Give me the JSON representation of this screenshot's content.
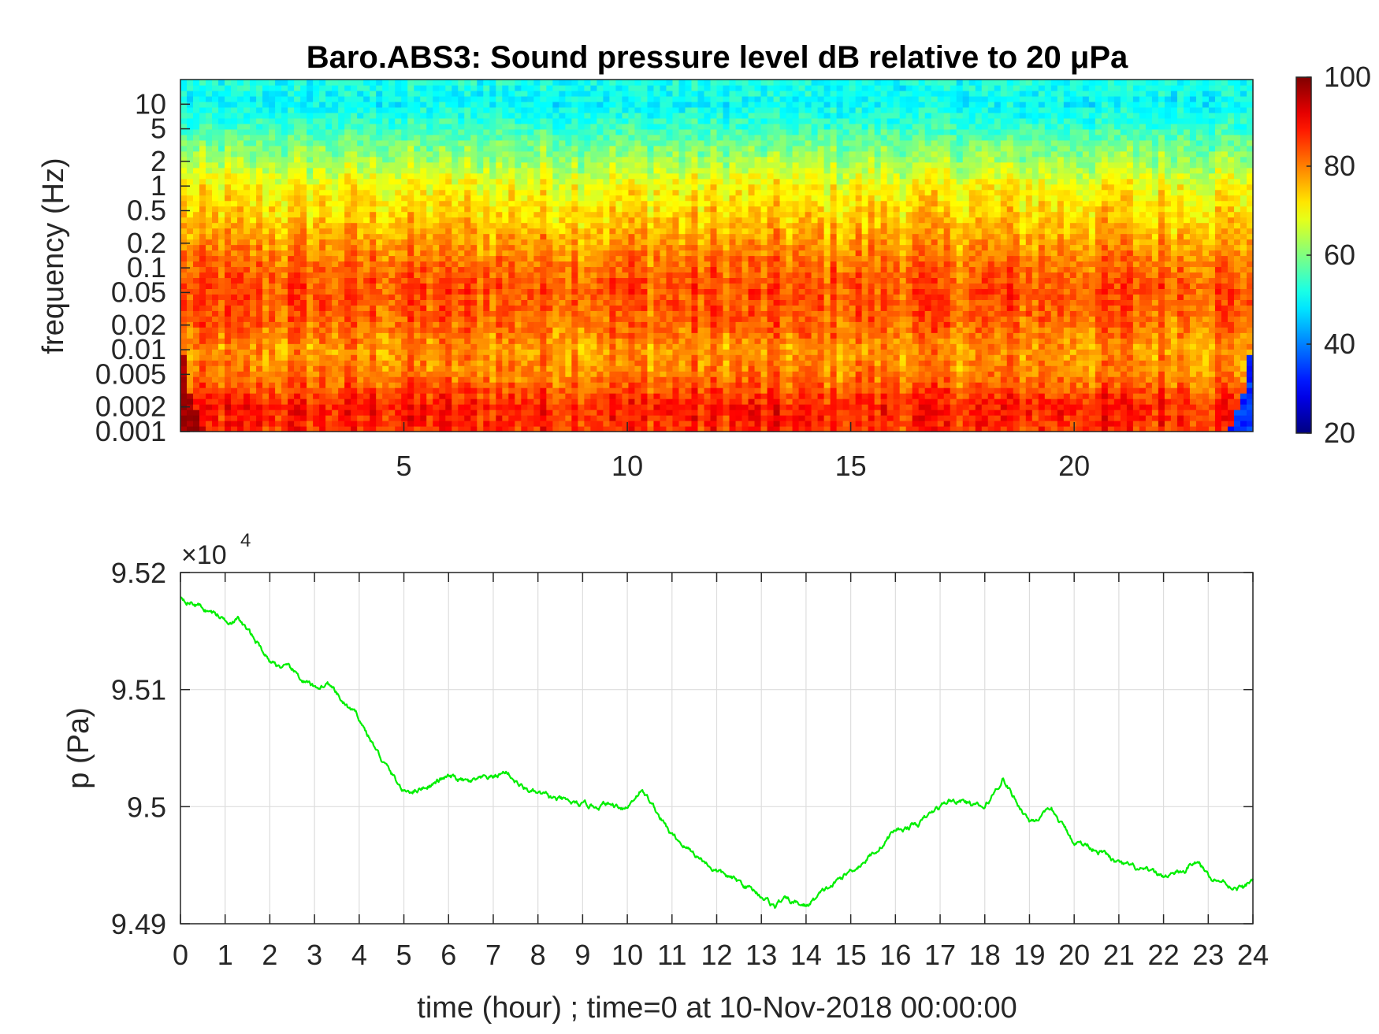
{
  "chart_data": [
    {
      "type": "heatmap",
      "title": "Baro.ABS3: Sound pressure level dB relative to 20 μPa",
      "ylabel": "frequency (Hz)",
      "xlabel": "",
      "xlim": [
        0,
        24
      ],
      "ylim": [
        0.001,
        20
      ],
      "y_scale": "log",
      "x_ticks": [
        5,
        10,
        15,
        20
      ],
      "x_tick_labels": [
        "5",
        "10",
        "15",
        "20"
      ],
      "y_ticks": [
        0.001,
        0.002,
        0.005,
        0.01,
        0.02,
        0.05,
        0.1,
        0.2,
        0.5,
        1,
        2,
        5,
        10
      ],
      "y_tick_labels": [
        "0.001",
        "0.002",
        "0.005",
        "0.01",
        "0.02",
        "0.05",
        "0.1",
        "0.2",
        "0.5",
        "1",
        "2",
        "5",
        "10"
      ],
      "colormap": "jet",
      "colorbar": {
        "range": [
          20,
          100
        ],
        "ticks": [
          20,
          40,
          60,
          80,
          100
        ],
        "tick_labels": [
          "20",
          "40",
          "60",
          "80",
          "100"
        ]
      },
      "level_profile": {
        "frequency_hz": [
          0.001,
          0.002,
          0.005,
          0.01,
          0.02,
          0.05,
          0.1,
          0.2,
          0.5,
          1,
          2,
          5,
          10,
          20
        ],
        "db": [
          86,
          88,
          80,
          78,
          82,
          84,
          82,
          78,
          73,
          70,
          63,
          55,
          50,
          52
        ]
      }
    },
    {
      "type": "line",
      "title": "",
      "xlabel": "time (hour) ; time=0 at 10-Nov-2018 00:00:00",
      "ylabel": "p (Pa)",
      "xlim": [
        0,
        24
      ],
      "ylim": [
        94900,
        95200
      ],
      "y_exponent_label": "×10",
      "y_exponent": "4",
      "grid": true,
      "x_ticks": [
        0,
        1,
        2,
        3,
        4,
        5,
        6,
        7,
        8,
        9,
        10,
        11,
        12,
        13,
        14,
        15,
        16,
        17,
        18,
        19,
        20,
        21,
        22,
        23,
        24
      ],
      "x_tick_labels": [
        "0",
        "1",
        "2",
        "3",
        "4",
        "5",
        "6",
        "7",
        "8",
        "9",
        "10",
        "11",
        "12",
        "13",
        "14",
        "15",
        "16",
        "17",
        "18",
        "19",
        "20",
        "21",
        "22",
        "23",
        "24"
      ],
      "y_ticks": [
        94900,
        95000,
        95100,
        95200
      ],
      "y_tick_labels": [
        "9.49",
        "9.5",
        "9.51",
        "9.52"
      ],
      "series": [
        {
          "color": "#00ee00",
          "x": [
            0,
            0.5,
            1,
            1.3,
            1.7,
            2,
            2.5,
            3,
            3.3,
            3.6,
            4,
            4.5,
            5,
            5.5,
            6,
            6.5,
            7,
            7.3,
            7.6,
            8,
            8.5,
            9,
            9.5,
            10,
            10.3,
            10.5,
            11,
            11.5,
            12,
            12.5,
            13,
            13.3,
            13.5,
            14,
            14.5,
            15,
            15.5,
            16,
            16.5,
            17,
            17.2,
            17.5,
            18,
            18.4,
            18.7,
            19,
            19.5,
            20,
            20.5,
            21,
            21.5,
            22,
            22.5,
            22.7,
            23,
            23.5,
            23.8,
            24
          ],
          "y": [
            95180,
            95170,
            95160,
            95160,
            95140,
            95125,
            95115,
            95100,
            95105,
            95090,
            95075,
            95040,
            95012,
            95018,
            95025,
            95020,
            95025,
            95030,
            95018,
            95010,
            95005,
            95000,
            95002,
            95000,
            95015,
            95005,
            94975,
            94960,
            94945,
            94935,
            94925,
            94915,
            94920,
            94915,
            94930,
            94945,
            94960,
            94980,
            94985,
            95000,
            95005,
            95005,
            94998,
            95025,
            95005,
            94988,
            94995,
            94970,
            94965,
            94950,
            94945,
            94940,
            94945,
            94955,
            94942,
            94933,
            94930,
            94938
          ]
        }
      ]
    }
  ]
}
